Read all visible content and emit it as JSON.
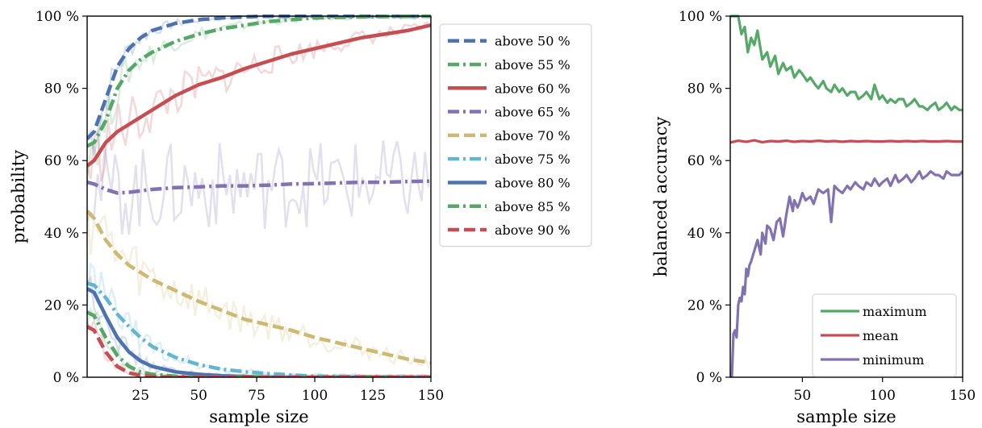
{
  "chart_data": [
    {
      "type": "line",
      "title": "",
      "xlabel": "sample size",
      "ylabel": "probability",
      "xlim": [
        2,
        150
      ],
      "ylim": [
        0,
        100
      ],
      "xticks": [
        25,
        50,
        75,
        100,
        125,
        150
      ],
      "yticks": [
        0,
        20,
        40,
        60,
        80,
        100
      ],
      "xtick_labels": [
        "25",
        "50",
        "75",
        "100",
        "125",
        "150"
      ],
      "ytick_labels": [
        "0 %",
        "20 %",
        "40 %",
        "60 %",
        "80 %",
        "100 %"
      ],
      "grid": false,
      "legend_placement": "outside right",
      "series": [
        {
          "name": "above 50 %",
          "color": "#4c72b0",
          "dash": "dashed",
          "x": [
            2,
            5,
            10,
            15,
            20,
            25,
            30,
            40,
            50,
            60,
            70,
            80,
            100,
            150
          ],
          "y": [
            66,
            68,
            77,
            86,
            91,
            94,
            96,
            98,
            99,
            99.5,
            99.8,
            100,
            100,
            100
          ]
        },
        {
          "name": "above 55 %",
          "color": "#55a868",
          "dash": "dashdot",
          "x": [
            2,
            5,
            10,
            15,
            20,
            25,
            30,
            40,
            50,
            60,
            70,
            80,
            90,
            100,
            120,
            150
          ],
          "y": [
            64,
            65,
            71,
            80,
            85,
            88,
            90,
            93,
            95,
            96.5,
            97.5,
            98.5,
            99,
            99.5,
            99.8,
            100
          ]
        },
        {
          "name": "above 60 %",
          "color": "#c44e52",
          "dash": "solid",
          "x": [
            2,
            5,
            10,
            15,
            20,
            25,
            30,
            40,
            50,
            60,
            70,
            80,
            90,
            100,
            110,
            120,
            130,
            140,
            150
          ],
          "y": [
            58.5,
            60,
            65,
            68,
            70,
            72,
            74,
            78,
            81,
            83,
            85.5,
            87.5,
            89.5,
            91,
            92.5,
            94,
            95,
            96,
            97.5
          ]
        },
        {
          "name": "above 65 %",
          "color": "#8172b2",
          "dash": "dashdot",
          "x": [
            2,
            5,
            10,
            15,
            20,
            30,
            40,
            50,
            60,
            70,
            80,
            90,
            100,
            110,
            120,
            130,
            140,
            150
          ],
          "y": [
            54,
            53.5,
            52,
            51,
            51.2,
            52,
            52.5,
            52.7,
            53,
            53,
            53.2,
            53.5,
            53.6,
            53.8,
            54,
            54,
            54.2,
            54.3
          ]
        },
        {
          "name": "above 70 %",
          "color": "#ccb974",
          "dash": "dashed",
          "x": [
            2,
            5,
            10,
            15,
            20,
            30,
            40,
            50,
            60,
            70,
            80,
            90,
            100,
            110,
            120,
            130,
            140,
            150
          ],
          "y": [
            46,
            44,
            38,
            34,
            31,
            27,
            24,
            21,
            18.5,
            16,
            14.5,
            13,
            11,
            9.5,
            8,
            6.5,
            5,
            4
          ]
        },
        {
          "name": "above 75 %",
          "color": "#64b5cd",
          "dash": "dashdot",
          "x": [
            2,
            5,
            10,
            15,
            20,
            25,
            30,
            40,
            50,
            60,
            70,
            80,
            90,
            100,
            150
          ],
          "y": [
            26,
            25.5,
            22,
            17.5,
            14,
            11,
            8.5,
            5.5,
            3.5,
            2.2,
            1.5,
            1,
            0.6,
            0.3,
            0
          ]
        },
        {
          "name": "above 80 %",
          "color": "#4c72b0",
          "dash": "solid",
          "x": [
            2,
            5,
            10,
            15,
            20,
            25,
            30,
            40,
            50,
            60,
            70,
            80,
            150
          ],
          "y": [
            24.5,
            23.5,
            17,
            11,
            7,
            4.5,
            3,
            1.5,
            0.8,
            0.4,
            0.2,
            0,
            0
          ]
        },
        {
          "name": "above 85 %",
          "color": "#55a868",
          "dash": "dashdot",
          "x": [
            2,
            5,
            10,
            15,
            20,
            25,
            30,
            40,
            50,
            150
          ],
          "y": [
            18,
            17,
            11,
            6,
            3,
            1.5,
            0.8,
            0.3,
            0,
            0
          ]
        },
        {
          "name": "above 90 %",
          "color": "#c44e52",
          "dash": "dashed",
          "x": [
            2,
            5,
            10,
            15,
            20,
            25,
            30,
            40,
            150
          ],
          "y": [
            14,
            13,
            7,
            3,
            1.2,
            0.5,
            0.2,
            0,
            0
          ]
        }
      ]
    },
    {
      "type": "line",
      "title": "",
      "xlabel": "sample size",
      "ylabel": "balanced accuracy",
      "xlim": [
        5,
        150
      ],
      "ylim": [
        0,
        100
      ],
      "xticks": [
        50,
        100,
        150
      ],
      "yticks": [
        0,
        20,
        40,
        60,
        80,
        100
      ],
      "xtick_labels": [
        "50",
        "100",
        "150"
      ],
      "ytick_labels": [
        "0 %",
        "20 %",
        "40 %",
        "60 %",
        "80 %",
        "100 %"
      ],
      "grid": false,
      "legend_placement": "lower right",
      "series": [
        {
          "name": "maximum",
          "color": "#55a868",
          "x": [
            5,
            10,
            12,
            14,
            16,
            18,
            20,
            22,
            25,
            28,
            30,
            33,
            35,
            38,
            40,
            43,
            45,
            48,
            50,
            53,
            55,
            58,
            60,
            63,
            65,
            68,
            70,
            73,
            75,
            78,
            80,
            83,
            85,
            88,
            90,
            93,
            95,
            98,
            100,
            103,
            105,
            108,
            110,
            113,
            115,
            118,
            120,
            123,
            125,
            128,
            130,
            133,
            135,
            138,
            140,
            143,
            145,
            148,
            150
          ],
          "y": [
            100,
            100,
            95,
            97,
            90,
            94,
            92,
            96,
            88,
            90,
            86,
            89,
            84,
            87,
            85,
            86,
            83,
            85,
            84,
            82,
            83,
            81,
            80,
            82,
            80,
            79,
            81,
            79,
            80,
            78,
            79,
            79,
            77,
            78,
            79,
            77,
            81,
            77,
            78,
            76,
            77,
            76,
            77,
            77,
            75,
            76,
            77,
            75,
            75,
            74,
            75,
            76,
            74,
            75,
            76,
            74,
            75,
            74,
            74
          ]
        },
        {
          "name": "mean",
          "color": "#c44e52",
          "x": [
            5,
            10,
            15,
            20,
            25,
            30,
            35,
            40,
            45,
            50,
            55,
            60,
            65,
            70,
            75,
            80,
            85,
            90,
            95,
            100,
            105,
            110,
            115,
            120,
            125,
            130,
            135,
            140,
            145,
            150
          ],
          "y": [
            65,
            65.5,
            65.2,
            65.6,
            65.1,
            65.4,
            65.3,
            65.5,
            65.2,
            65.4,
            65.3,
            65.5,
            65.3,
            65.4,
            65.2,
            65.4,
            65.3,
            65.4,
            65.3,
            65.3,
            65.4,
            65.3,
            65.4,
            65.3,
            65.4,
            65.3,
            65.3,
            65.4,
            65.3,
            65.3
          ]
        },
        {
          "name": "minimum",
          "color": "#8172b2",
          "x": [
            5,
            6,
            7,
            8,
            9,
            10,
            11,
            12,
            13,
            14,
            15,
            16,
            17,
            18,
            20,
            22,
            24,
            25,
            27,
            28,
            30,
            32,
            34,
            36,
            38,
            40,
            42,
            44,
            45,
            47,
            48,
            50,
            52,
            55,
            57,
            60,
            63,
            66,
            68,
            70,
            72,
            75,
            78,
            80,
            83,
            85,
            88,
            90,
            93,
            95,
            98,
            100,
            103,
            105,
            108,
            110,
            113,
            115,
            118,
            120,
            123,
            125,
            128,
            130,
            133,
            135,
            138,
            140,
            143,
            145,
            148,
            150
          ],
          "y": [
            0,
            0,
            12,
            13,
            11,
            20,
            22,
            21,
            25,
            23,
            30,
            28,
            31,
            32,
            35,
            38,
            34,
            40,
            37,
            42,
            41,
            38,
            43,
            44,
            39,
            45,
            50,
            46,
            49,
            47,
            48,
            51,
            49,
            50,
            48,
            52,
            51,
            52,
            43,
            53,
            52,
            51,
            53,
            52,
            54,
            53,
            52,
            54,
            53,
            55,
            53,
            54,
            55,
            53,
            56,
            54,
            55,
            56,
            54,
            55,
            57,
            55,
            56,
            57,
            56,
            56,
            55,
            57,
            56,
            56,
            56,
            57
          ]
        }
      ]
    }
  ]
}
